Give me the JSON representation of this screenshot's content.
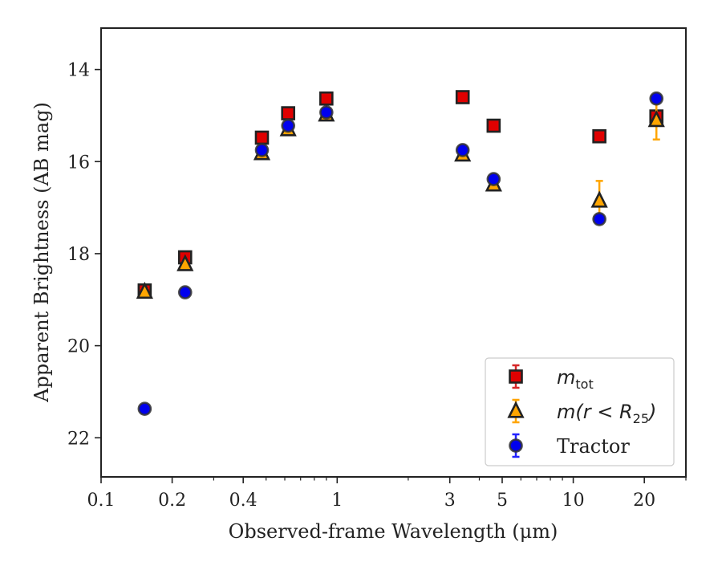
{
  "chart_data": {
    "type": "scatter",
    "xlabel": "Observed-frame Wavelength (μm)",
    "ylabel": "Apparent Brightness (AB mag)",
    "xscale": "log",
    "xlim": [
      0.1,
      30
    ],
    "ylim": [
      22.85,
      13.1
    ],
    "y_inverted": true,
    "x_ticks": [
      {
        "value": 0.1,
        "label": "0.1"
      },
      {
        "value": 0.2,
        "label": "0.2"
      },
      {
        "value": 0.4,
        "label": "0.4"
      },
      {
        "value": 1,
        "label": "1"
      },
      {
        "value": 3,
        "label": "3"
      },
      {
        "value": 5,
        "label": "5"
      },
      {
        "value": 10,
        "label": "10"
      },
      {
        "value": 20,
        "label": "20"
      }
    ],
    "y_ticks": [
      {
        "value": 14,
        "label": "14"
      },
      {
        "value": 16,
        "label": "16"
      },
      {
        "value": 18,
        "label": "18"
      },
      {
        "value": 20,
        "label": "20"
      },
      {
        "value": 22,
        "label": "22"
      }
    ],
    "legend_position": "lower-right",
    "series": [
      {
        "name": "m_tot",
        "legend_label": {
          "main": "m",
          "sub": "tot",
          "rest": ""
        },
        "marker": "square",
        "color": "#e00000",
        "edge_color": "#222222",
        "error_color": "#d62728",
        "points": [
          {
            "x": 0.153,
            "y": 18.8,
            "err": 0.08
          },
          {
            "x": 0.227,
            "y": 18.08,
            "err": 0.05
          },
          {
            "x": 0.48,
            "y": 15.48,
            "err": 0.03
          },
          {
            "x": 0.62,
            "y": 14.95,
            "err": 0.03
          },
          {
            "x": 0.9,
            "y": 14.63,
            "err": 0.03
          },
          {
            "x": 3.4,
            "y": 14.6,
            "err": 0.03
          },
          {
            "x": 4.6,
            "y": 15.22,
            "err": 0.03
          },
          {
            "x": 12.9,
            "y": 15.45,
            "err": 0.03
          },
          {
            "x": 22.5,
            "y": 15.02,
            "err": 0.05
          }
        ]
      },
      {
        "name": "m(r < R_25)",
        "legend_label": {
          "main": "m(r < R",
          "sub": "25",
          "rest": ")"
        },
        "marker": "triangle",
        "color": "#ffa500",
        "edge_color": "#222222",
        "error_color": "#ffa500",
        "points": [
          {
            "x": 0.153,
            "y": 18.83,
            "err": 0.06
          },
          {
            "x": 0.227,
            "y": 18.23,
            "err": 0.05
          },
          {
            "x": 0.48,
            "y": 15.82,
            "err": 0.04
          },
          {
            "x": 0.62,
            "y": 15.3,
            "err": 0.04
          },
          {
            "x": 0.9,
            "y": 14.98,
            "err": 0.03
          },
          {
            "x": 3.4,
            "y": 15.85,
            "err": 0.04
          },
          {
            "x": 4.6,
            "y": 16.5,
            "err": 0.05
          },
          {
            "x": 12.9,
            "y": 16.85,
            "err": 0.43
          },
          {
            "x": 22.5,
            "y": 15.1,
            "err": 0.42
          }
        ]
      },
      {
        "name": "Tractor",
        "legend_label": {
          "main": "Tractor",
          "sub": "",
          "rest": ""
        },
        "marker": "circle",
        "color": "#0000ee",
        "edge_color": "#333333",
        "error_color": "#2222ff",
        "points": [
          {
            "x": 0.153,
            "y": 21.37,
            "err": 0.06
          },
          {
            "x": 0.227,
            "y": 18.84,
            "err": 0.05
          },
          {
            "x": 0.48,
            "y": 15.75,
            "err": 0.05
          },
          {
            "x": 0.62,
            "y": 15.22,
            "err": 0.05
          },
          {
            "x": 0.9,
            "y": 14.93,
            "err": 0.05
          },
          {
            "x": 3.4,
            "y": 15.75,
            "err": 0.05
          },
          {
            "x": 4.6,
            "y": 16.38,
            "err": 0.05
          },
          {
            "x": 12.9,
            "y": 17.25,
            "err": 0.06
          },
          {
            "x": 22.5,
            "y": 14.63,
            "err": 0.05
          }
        ]
      }
    ]
  }
}
